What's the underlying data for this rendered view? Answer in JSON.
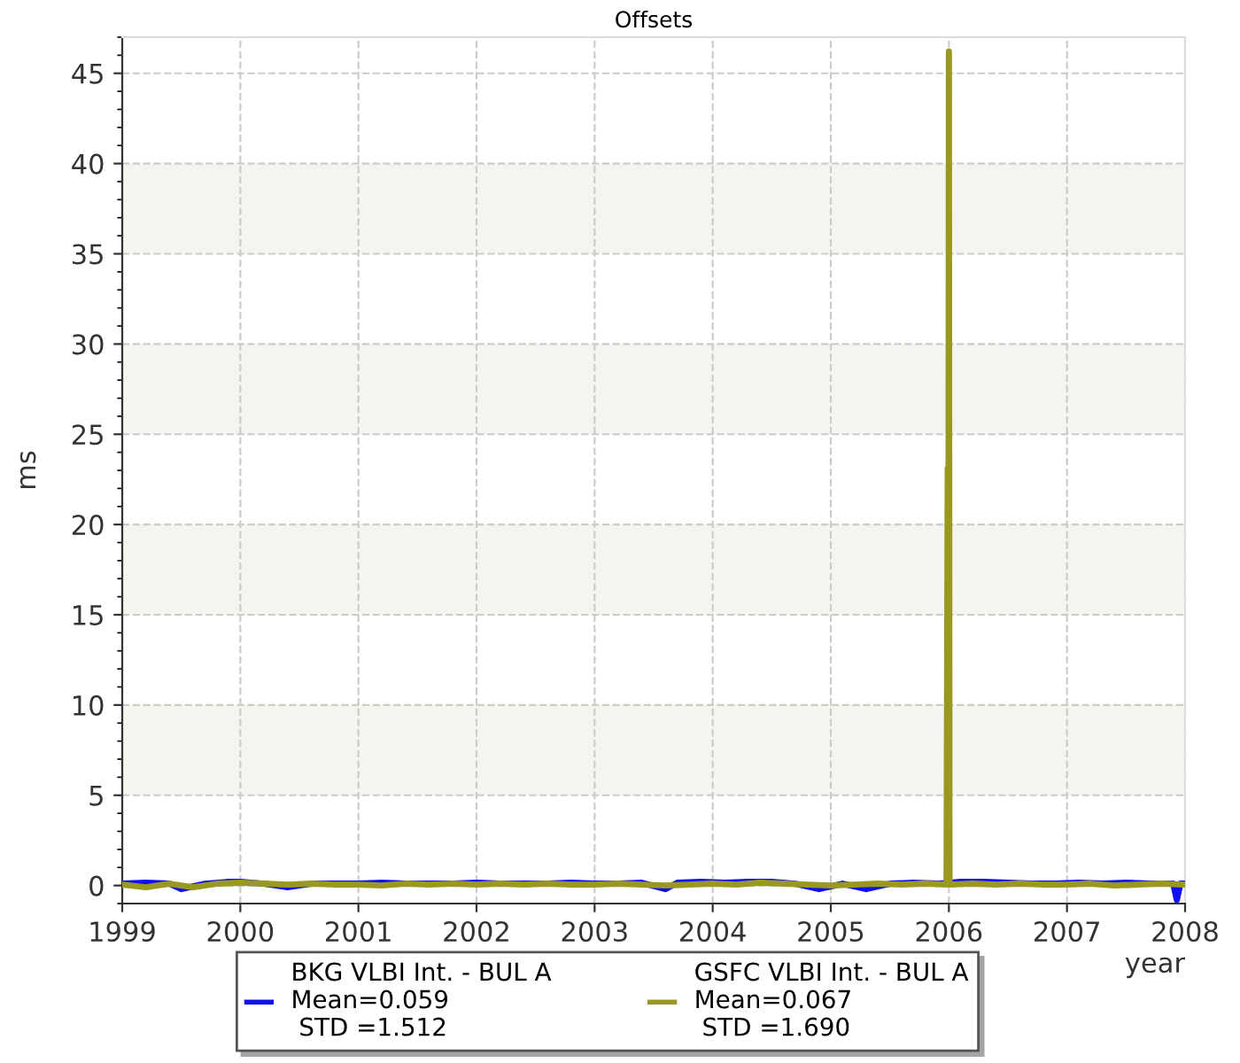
{
  "chart_data": {
    "type": "line",
    "title": "Offsets",
    "xlabel": "year",
    "ylabel": "ms",
    "xlim": [
      1999,
      2008
    ],
    "xticks": [
      1999,
      2000,
      2001,
      2002,
      2003,
      2004,
      2005,
      2006,
      2007,
      2008
    ],
    "ylim": [
      -1,
      47
    ],
    "yticks": [
      0,
      5,
      10,
      15,
      20,
      25,
      30,
      35,
      40,
      45
    ],
    "grid": true,
    "legend": "bottom",
    "line_style": "solid",
    "marker": "none",
    "bands": [
      {
        "axis": "y",
        "from": 5,
        "to": 10,
        "color": "#f5f5f0"
      },
      {
        "axis": "y",
        "from": 15,
        "to": 20,
        "color": "#f5f5f0"
      },
      {
        "axis": "y",
        "from": 25,
        "to": 30,
        "color": "#f5f5f0"
      },
      {
        "axis": "y",
        "from": 35,
        "to": 40,
        "color": "#f5f5f0"
      }
    ],
    "series": [
      {
        "name": "BKG VLBI Int. - BUL A\nMean=0.059\n STD =1.512",
        "color": "#1010ee",
        "x": [
          1999.0,
          1999.2,
          1999.4,
          1999.5,
          1999.7,
          1999.9,
          2000.0,
          2000.2,
          2000.4,
          2000.6,
          2000.8,
          2001.0,
          2001.2,
          2001.4,
          2001.6,
          2001.8,
          2002.0,
          2002.2,
          2002.4,
          2002.6,
          2002.8,
          2003.0,
          2003.2,
          2003.4,
          2003.6,
          2003.7,
          2003.9,
          2004.1,
          2004.3,
          2004.5,
          2004.7,
          2004.9,
          2005.1,
          2005.3,
          2005.5,
          2005.7,
          2005.9,
          2006.1,
          2006.3,
          2006.5,
          2006.7,
          2006.9,
          2007.1,
          2007.3,
          2007.5,
          2007.7,
          2007.9,
          2007.93,
          2007.96,
          2008.0
        ],
        "values": [
          0.1,
          0.15,
          0.1,
          -0.2,
          0.1,
          0.2,
          0.2,
          0.1,
          -0.1,
          0.1,
          0.1,
          0.1,
          0.15,
          0.1,
          0.1,
          0.1,
          0.15,
          0.1,
          0.1,
          0.1,
          0.15,
          0.1,
          0.1,
          0.15,
          -0.2,
          0.15,
          0.2,
          0.15,
          0.2,
          0.2,
          0.1,
          -0.2,
          0.1,
          -0.2,
          0.1,
          0.15,
          0.1,
          0.2,
          0.2,
          0.15,
          0.1,
          0.1,
          0.15,
          0.1,
          0.15,
          0.1,
          0.1,
          -0.8,
          0.1,
          0.1
        ]
      },
      {
        "name": "GSFC VLBI Int. - BUL A\nMean=0.067\n STD =1.690",
        "color": "#999922",
        "x": [
          1999.0,
          1999.2,
          1999.4,
          1999.6,
          1999.8,
          2000.0,
          2000.2,
          2000.4,
          2000.6,
          2000.8,
          2001.0,
          2001.2,
          2001.4,
          2001.6,
          2001.8,
          2002.0,
          2002.2,
          2002.4,
          2002.6,
          2002.8,
          2003.0,
          2003.2,
          2003.4,
          2003.6,
          2003.8,
          2004.0,
          2004.2,
          2004.4,
          2004.6,
          2004.8,
          2005.0,
          2005.2,
          2005.4,
          2005.6,
          2005.8,
          2005.98,
          2005.99,
          2005.995,
          2006.0,
          2006.005,
          2006.2,
          2006.4,
          2006.6,
          2006.8,
          2007.0,
          2007.2,
          2007.4,
          2007.6,
          2007.8,
          2008.0
        ],
        "values": [
          0.05,
          -0.1,
          0.1,
          -0.1,
          0.1,
          0.15,
          0.1,
          0.05,
          0.1,
          0.05,
          0.05,
          0.0,
          0.1,
          0.05,
          0.1,
          0.05,
          0.1,
          0.05,
          0.1,
          0.05,
          0.05,
          0.1,
          0.05,
          0.0,
          0.05,
          0.1,
          0.05,
          0.15,
          0.1,
          0.05,
          0.0,
          0.05,
          0.1,
          0.05,
          0.1,
          0.05,
          23.1,
          0.1,
          46.2,
          0.05,
          0.1,
          0.05,
          0.1,
          0.05,
          0.05,
          0.1,
          0.0,
          0.05,
          0.1,
          0.05
        ]
      }
    ]
  }
}
